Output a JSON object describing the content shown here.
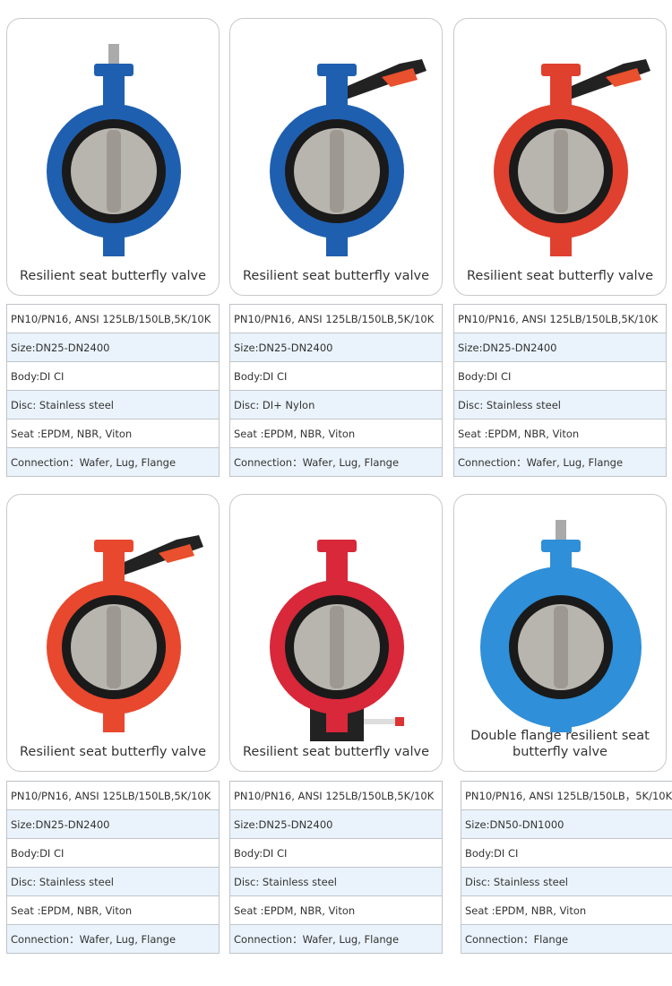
{
  "products": [
    {
      "caption": "Resilient seat butterfly valve",
      "body_color": "#1f5fb0",
      "actuator": "none",
      "specs": [
        "PN10/PN16, ANSI 125LB/150LB,5K/10K",
        "Size:DN25-DN2400",
        "Body:DI CI",
        "Disc: Stainless steel",
        "Seat :EPDM,  NBR,  Viton",
        "Connection：Wafer, Lug, Flange"
      ]
    },
    {
      "caption": "Resilient seat butterfly valve",
      "body_color": "#1f5fb0",
      "actuator": "lever",
      "specs": [
        "PN10/PN16, ANSI 125LB/150LB,5K/10K",
        "Size:DN25-DN2400",
        "Body:DI CI",
        "Disc: DI+ Nylon",
        "Seat :EPDM,  NBR,  Viton",
        "Connection：Wafer, Lug, Flange"
      ]
    },
    {
      "caption": "Resilient seat butterfly valve",
      "body_color": "#e0402e",
      "actuator": "lever",
      "specs": [
        "PN10/PN16, ANSI 125LB/150LB,5K/10K",
        "Size:DN25-DN2400",
        "Body:DI CI",
        "Disc: Stainless steel",
        "Seat :EPDM,  NBR,  Viton",
        "Connection：Wafer, Lug, Flange"
      ]
    },
    {
      "caption": "Resilient seat butterfly valve",
      "body_color": "#e8482e",
      "actuator": "lever",
      "specs": [
        "PN10/PN16, ANSI 125LB/150LB,5K/10K",
        "Size:DN25-DN2400",
        "Body:DI CI",
        "Disc: Stainless steel",
        "Seat :EPDM,  NBR,  Viton",
        "Connection：Wafer, Lug, Flange"
      ]
    },
    {
      "caption": "Resilient seat butterfly valve",
      "body_color": "#d8283a",
      "actuator": "gear",
      "specs": [
        "PN10/PN16, ANSI 125LB/150LB,5K/10K",
        "Size:DN25-DN2400",
        "Body:DI CI",
        "Disc: Stainless steel",
        "Seat :EPDM,  NBR,  Viton",
        "Connection：Wafer, Lug, Flange"
      ]
    },
    {
      "caption": "Double flange resilient seat butterfly valve",
      "body_color": "#2f8fd8",
      "actuator": "none",
      "specs": [
        "PN10/PN16, ANSI 125LB/150LB，5K/10K",
        "Size:DN50-DN1000",
        "Body:DI CI",
        "Disc: Stainless steel",
        "Seat :EPDM, NBR, Viton",
        "Connection：Flange"
      ]
    }
  ]
}
